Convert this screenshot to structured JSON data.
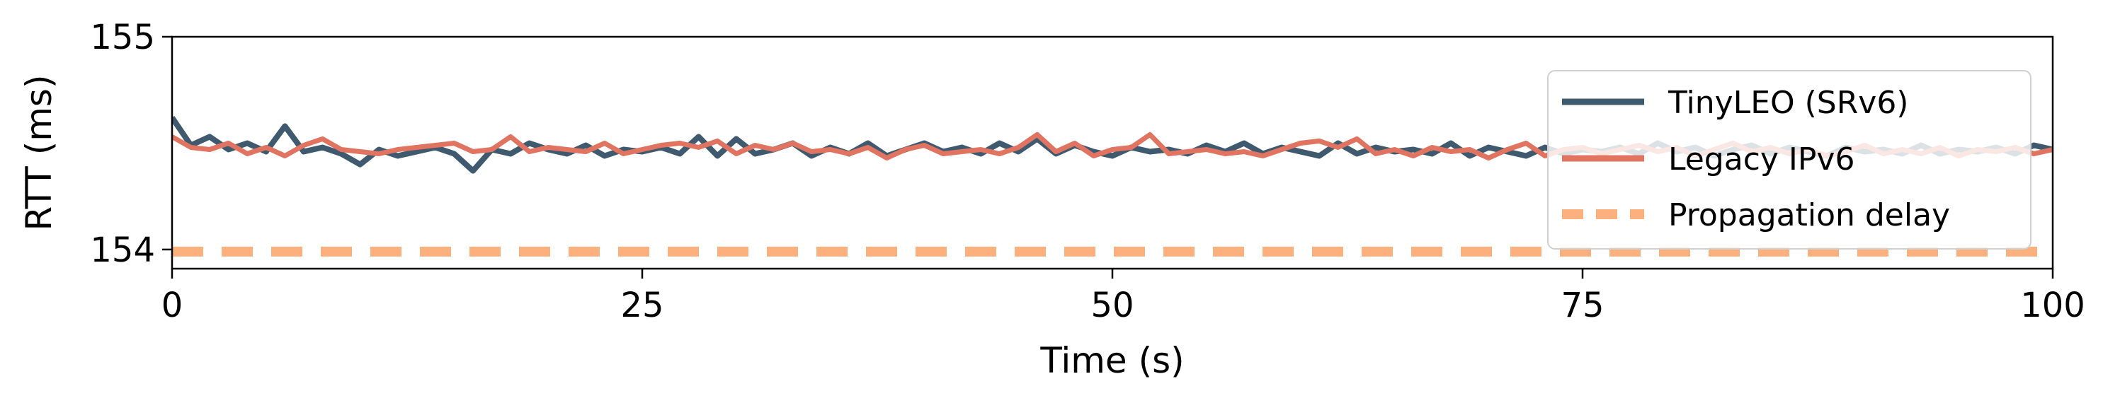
{
  "chart_data": {
    "type": "line",
    "xlabel": "Time (s)",
    "ylabel": "RTT (ms)",
    "xlim": [
      0,
      100
    ],
    "ylim": [
      153.91,
      155.0
    ],
    "xticks": [
      0,
      25,
      50,
      75,
      100
    ],
    "xtick_labels": [
      "0",
      "25",
      "50",
      "75",
      "100"
    ],
    "yticks": [
      154,
      155
    ],
    "ytick_labels": [
      "154",
      "155"
    ],
    "grid": false,
    "legend_position": "right",
    "x": [
      0,
      1,
      2,
      3,
      4,
      5,
      6,
      7,
      8,
      9,
      10,
      11,
      12,
      13,
      14,
      15,
      16,
      17,
      18,
      19,
      20,
      21,
      22,
      23,
      24,
      25,
      26,
      27,
      28,
      29,
      30,
      31,
      32,
      33,
      34,
      35,
      36,
      37,
      38,
      39,
      40,
      41,
      42,
      43,
      44,
      45,
      46,
      47,
      48,
      49,
      50,
      51,
      52,
      53,
      54,
      55,
      56,
      57,
      58,
      59,
      60,
      61,
      62,
      63,
      64,
      65,
      66,
      67,
      68,
      69,
      70,
      71,
      72,
      73,
      74,
      75,
      76,
      77,
      78,
      79,
      80,
      81,
      82,
      83,
      84,
      85,
      86,
      87,
      88,
      89,
      90,
      91,
      92,
      93,
      94,
      95,
      96,
      97,
      98,
      99,
      100
    ],
    "series": [
      {
        "name": "TinyLEO (SRv6)",
        "color": "#3f5a6e",
        "style": "solid",
        "values": [
          154.62,
          154.49,
          154.53,
          154.47,
          154.5,
          154.46,
          154.58,
          154.46,
          154.48,
          154.45,
          154.4,
          154.47,
          154.44,
          154.46,
          154.48,
          154.45,
          154.37,
          154.47,
          154.45,
          154.5,
          154.47,
          154.45,
          154.49,
          154.44,
          154.47,
          154.46,
          154.48,
          154.45,
          154.53,
          154.44,
          154.52,
          154.45,
          154.47,
          154.5,
          154.44,
          154.48,
          154.45,
          154.5,
          154.44,
          154.47,
          154.5,
          154.46,
          154.48,
          154.45,
          154.5,
          154.46,
          154.52,
          154.45,
          154.49,
          154.46,
          154.44,
          154.48,
          154.46,
          154.47,
          154.45,
          154.49,
          154.46,
          154.5,
          154.45,
          154.48,
          154.46,
          154.44,
          154.5,
          154.45,
          154.48,
          154.46,
          154.47,
          154.45,
          154.5,
          154.44,
          154.48,
          154.46,
          154.44,
          154.48,
          154.45,
          154.47,
          154.46,
          154.48,
          154.45,
          154.5,
          154.46,
          154.48,
          154.44,
          154.47,
          154.49,
          154.45,
          154.48,
          154.46,
          154.44,
          154.48,
          154.46,
          154.47,
          154.45,
          154.49,
          154.45,
          154.47,
          154.46,
          154.48,
          154.45,
          154.49,
          154.47
        ]
      },
      {
        "name": "Legacy IPv6",
        "color": "#e07461",
        "style": "solid",
        "values": [
          154.53,
          154.48,
          154.47,
          154.5,
          154.45,
          154.48,
          154.44,
          154.49,
          154.52,
          154.47,
          154.46,
          154.45,
          154.47,
          154.48,
          154.49,
          154.5,
          154.46,
          154.47,
          154.53,
          154.46,
          154.48,
          154.47,
          154.46,
          154.5,
          154.45,
          154.47,
          154.49,
          154.5,
          154.48,
          154.51,
          154.45,
          154.49,
          154.47,
          154.5,
          154.46,
          154.47,
          154.45,
          154.48,
          154.43,
          154.47,
          154.49,
          154.45,
          154.46,
          154.47,
          154.45,
          154.48,
          154.54,
          154.46,
          154.5,
          154.44,
          154.47,
          154.48,
          154.54,
          154.45,
          154.46,
          154.47,
          154.45,
          154.46,
          154.44,
          154.47,
          154.5,
          154.51,
          154.48,
          154.52,
          154.45,
          154.47,
          154.44,
          154.48,
          154.46,
          154.47,
          154.43,
          154.47,
          154.5,
          154.44,
          154.47,
          154.48,
          154.45,
          154.47,
          154.49,
          154.46,
          154.48,
          154.44,
          154.47,
          154.5,
          154.46,
          154.48,
          154.45,
          154.47,
          154.44,
          154.46,
          154.49,
          154.45,
          154.47,
          154.45,
          154.48,
          154.44,
          154.47,
          154.46,
          154.48,
          154.45,
          154.47
        ]
      },
      {
        "name": "Propagation delay",
        "color": "#fbb07e",
        "style": "dashed",
        "values": [
          153.99,
          153.99,
          153.99,
          153.99,
          153.99,
          153.99,
          153.99,
          153.99,
          153.99,
          153.99,
          153.99,
          153.99,
          153.99,
          153.99,
          153.99,
          153.99,
          153.99,
          153.99,
          153.99,
          153.99,
          153.99,
          153.99,
          153.99,
          153.99,
          153.99,
          153.99,
          153.99,
          153.99,
          153.99,
          153.99,
          153.99,
          153.99,
          153.99,
          153.99,
          153.99,
          153.99,
          153.99,
          153.99,
          153.99,
          153.99,
          153.99,
          153.99,
          153.99,
          153.99,
          153.99,
          153.99,
          153.99,
          153.99,
          153.99,
          153.99,
          153.99,
          153.99,
          153.99,
          153.99,
          153.99,
          153.99,
          153.99,
          153.99,
          153.99,
          153.99,
          153.99,
          153.99,
          153.99,
          153.99,
          153.99,
          153.99,
          153.99,
          153.99,
          153.99,
          153.99,
          153.99,
          153.99,
          153.99,
          153.99,
          153.99,
          153.99,
          153.99,
          153.99,
          153.99,
          153.99,
          153.99,
          153.99,
          153.99,
          153.99,
          153.99,
          153.99,
          153.99,
          153.99,
          153.99,
          153.99,
          153.99,
          153.99,
          153.99,
          153.99,
          153.99,
          153.99,
          153.99,
          153.99,
          153.99,
          153.99,
          153.99
        ]
      }
    ]
  }
}
